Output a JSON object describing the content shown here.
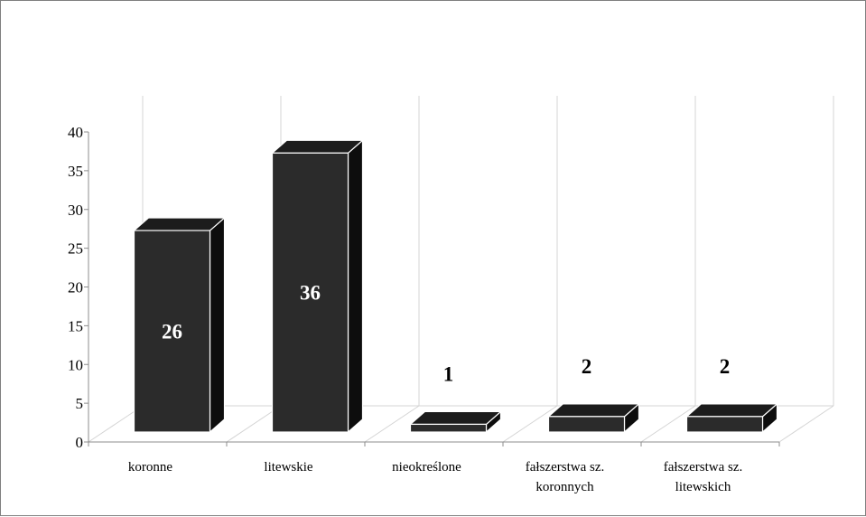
{
  "chart_data": {
    "type": "bar",
    "style": "3d-column",
    "categories": [
      [
        "koronne"
      ],
      [
        "litewskie"
      ],
      [
        "nieokreślone"
      ],
      [
        "fałszerstwa sz.",
        "koronnych"
      ],
      [
        "fałszerstwa sz.",
        "litewskich"
      ]
    ],
    "values": [
      26,
      36,
      1,
      2,
      2
    ],
    "data_labels": [
      "26",
      "36",
      "1",
      "2",
      "2"
    ],
    "ylim": [
      0,
      40
    ],
    "y_ticks": [
      "0",
      "5",
      "10",
      "15",
      "20",
      "25",
      "30",
      "35",
      "40"
    ],
    "grid": "vertical category walls",
    "legend": "none",
    "title": "",
    "xlabel": "",
    "ylabel": "",
    "colors": {
      "bar_front": "#2b2b2b",
      "bar_side": "#0d0d0d",
      "bar_top": "#1c1c1c",
      "bar_edge": "#ffffff",
      "gridline": "#d4d4d4",
      "axis": "#8c8c8c",
      "label_inside": "#ffffff",
      "label_outside": "#000000"
    }
  }
}
